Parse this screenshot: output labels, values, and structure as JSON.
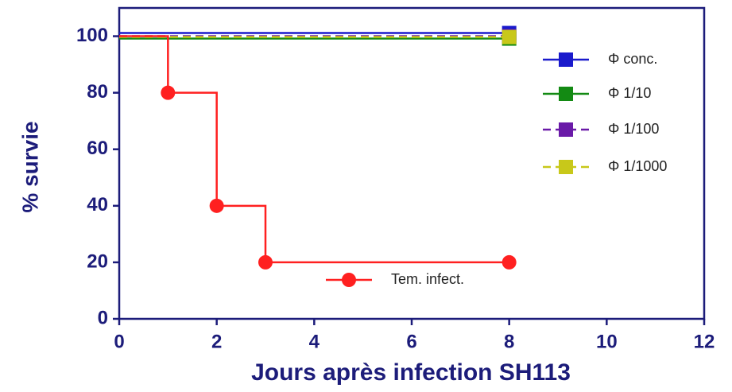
{
  "chart_data": {
    "type": "step",
    "xlabel": "Jours après infection SH113",
    "ylabel": "% survie",
    "xlim": [
      0,
      12
    ],
    "xticks": [
      0,
      2,
      4,
      6,
      8,
      10,
      12
    ],
    "ylim": [
      0,
      110
    ],
    "yticks": [
      0,
      20,
      40,
      60,
      80,
      100
    ],
    "series": [
      {
        "name": "Φ conc.",
        "color": "#1a1acc",
        "marker": "square",
        "dash": false,
        "x": [
          0,
          8
        ],
        "values": [
          100,
          100
        ]
      },
      {
        "name": "Φ 1/10",
        "color": "#138a13",
        "marker": "square",
        "dash": false,
        "x": [
          0,
          8
        ],
        "values": [
          100,
          100
        ]
      },
      {
        "name": "Φ 1/100",
        "color": "#6a1aa8",
        "marker": "square",
        "dash": true,
        "x": [
          0,
          8
        ],
        "values": [
          100,
          100
        ]
      },
      {
        "name": "Φ 1/1000",
        "color": "#c8c81a",
        "marker": "square",
        "dash": true,
        "x": [
          0,
          8
        ],
        "values": [
          100,
          100
        ]
      },
      {
        "name": "Tem. infect.",
        "color": "#ff2020",
        "marker": "circle",
        "dash": false,
        "x": [
          0,
          1,
          2,
          3,
          8
        ],
        "values": [
          100,
          80,
          40,
          20,
          20
        ]
      }
    ]
  }
}
